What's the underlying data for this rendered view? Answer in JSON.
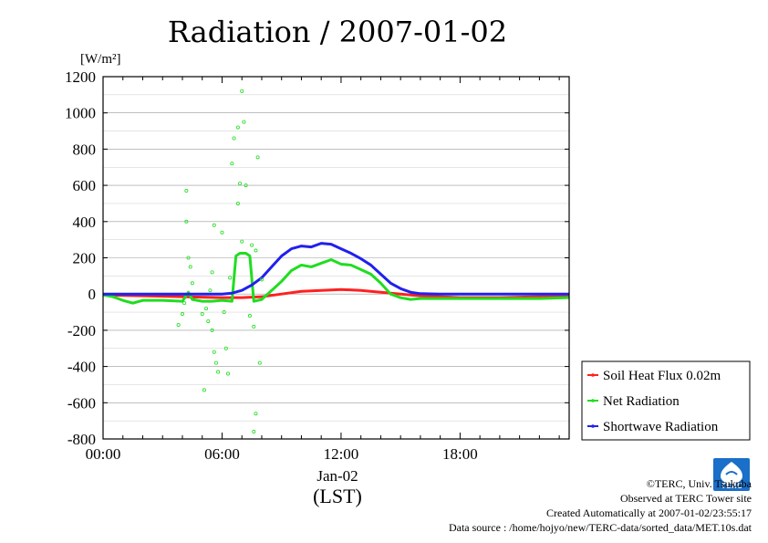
{
  "chart_data": {
    "type": "line",
    "title": "Radiation / 2007-01-02",
    "ylabel": "[W/m²]",
    "xlabel_date": "Jan-02",
    "xlabel": "(LST)",
    "ylim": [
      -800,
      1200
    ],
    "yticks": [
      "1200",
      "1000",
      "800",
      "600",
      "400",
      "200",
      "0",
      "-200",
      "-400",
      "-600",
      "-800"
    ],
    "ytick_values": [
      1200,
      1000,
      800,
      600,
      400,
      200,
      0,
      -200,
      -400,
      -600,
      -800
    ],
    "xlim": [
      0,
      23.5
    ],
    "xticks": [
      "00:00",
      "06:00",
      "12:00",
      "18:00"
    ],
    "xtick_values": [
      0,
      6,
      12,
      18
    ],
    "grid": true,
    "legend_position": "right",
    "series": [
      {
        "name": "Soil Heat Flux 0.02m",
        "color": "#ff2020",
        "x": [
          0,
          2,
          4,
          6,
          7,
          8,
          9,
          10,
          11,
          12,
          13,
          14,
          15,
          16,
          17,
          18,
          20,
          22,
          23.5
        ],
        "y": [
          -5,
          -10,
          -15,
          -20,
          -20,
          -15,
          0,
          15,
          20,
          25,
          20,
          10,
          0,
          -10,
          -15,
          -20,
          -20,
          -15,
          -15
        ]
      },
      {
        "name": "Net Radiation",
        "color": "#20dd20",
        "x": [
          0,
          0.5,
          1,
          1.5,
          2,
          3,
          4,
          4.3,
          4.5,
          5,
          5.5,
          6,
          6.5,
          6.7,
          6.9,
          7.2,
          7.4,
          7.6,
          8,
          8.5,
          9,
          9.5,
          10,
          10.5,
          11,
          11.5,
          12,
          12.5,
          13,
          13.5,
          14,
          14.5,
          15,
          15.5,
          16,
          17,
          18,
          20,
          22,
          23.5
        ],
        "y": [
          -5,
          -15,
          -35,
          -50,
          -35,
          -35,
          -40,
          10,
          -30,
          -40,
          -40,
          -35,
          -40,
          210,
          225,
          225,
          210,
          -40,
          -30,
          20,
          70,
          130,
          160,
          150,
          170,
          190,
          165,
          160,
          135,
          110,
          60,
          0,
          -20,
          -30,
          -25,
          -25,
          -25,
          -25,
          -25,
          -20
        ]
      },
      {
        "name": "Shortwave Radiation",
        "color": "#2020ee",
        "x": [
          0,
          1,
          2,
          3,
          4,
          5,
          6,
          6.5,
          7,
          7.5,
          8,
          8.5,
          9,
          9.5,
          10,
          10.5,
          11,
          11.5,
          12,
          12.5,
          13,
          13.5,
          14,
          14.5,
          15,
          15.5,
          16,
          17,
          18,
          20,
          22,
          23.5
        ],
        "y": [
          0,
          0,
          0,
          0,
          0,
          0,
          0,
          5,
          20,
          50,
          90,
          150,
          210,
          250,
          265,
          260,
          280,
          275,
          250,
          225,
          195,
          160,
          110,
          60,
          30,
          10,
          2,
          0,
          0,
          0,
          0,
          0
        ]
      }
    ],
    "scatter_series": {
      "name": "Net Radiation (10s spikes)",
      "color": "#20dd20",
      "points": [
        [
          4.2,
          570
        ],
        [
          4.2,
          400
        ],
        [
          4.3,
          200
        ],
        [
          4.4,
          150
        ],
        [
          4.1,
          -50
        ],
        [
          4.0,
          -110
        ],
        [
          3.8,
          -170
        ],
        [
          4.5,
          60
        ],
        [
          5.0,
          -110
        ],
        [
          5.2,
          -80
        ],
        [
          5.3,
          -150
        ],
        [
          5.5,
          -200
        ],
        [
          5.6,
          -320
        ],
        [
          5.7,
          -380
        ],
        [
          5.8,
          -430
        ],
        [
          5.6,
          380
        ],
        [
          5.4,
          20
        ],
        [
          5.5,
          120
        ],
        [
          5.1,
          -530
        ],
        [
          6.0,
          340
        ],
        [
          6.2,
          -300
        ],
        [
          6.3,
          -440
        ],
        [
          6.1,
          -100
        ],
        [
          6.4,
          90
        ],
        [
          6.5,
          720
        ],
        [
          6.6,
          860
        ],
        [
          6.8,
          920
        ],
        [
          7.0,
          1120
        ],
        [
          7.1,
          950
        ],
        [
          6.9,
          610
        ],
        [
          7.2,
          600
        ],
        [
          6.8,
          500
        ],
        [
          7.0,
          290
        ],
        [
          7.5,
          270
        ],
        [
          7.7,
          240
        ],
        [
          7.8,
          755
        ],
        [
          7.9,
          -380
        ],
        [
          7.6,
          -180
        ],
        [
          7.7,
          -660
        ],
        [
          7.6,
          -760
        ],
        [
          7.4,
          -120
        ],
        [
          8.0,
          80
        ]
      ]
    },
    "credits": {
      "copyright": "©TERC, Univ. Tsukuba",
      "observed": "Observed at TERC Tower site",
      "created": "Created Automatically at 2007-01-02/23:55:17",
      "source": "Data source : /home/hojyo/new/TERC-data/sorted_data/MET.10s.dat"
    },
    "logo_text": "TERC",
    "colors": {
      "frame": "#000000",
      "grid": "#999999"
    }
  }
}
